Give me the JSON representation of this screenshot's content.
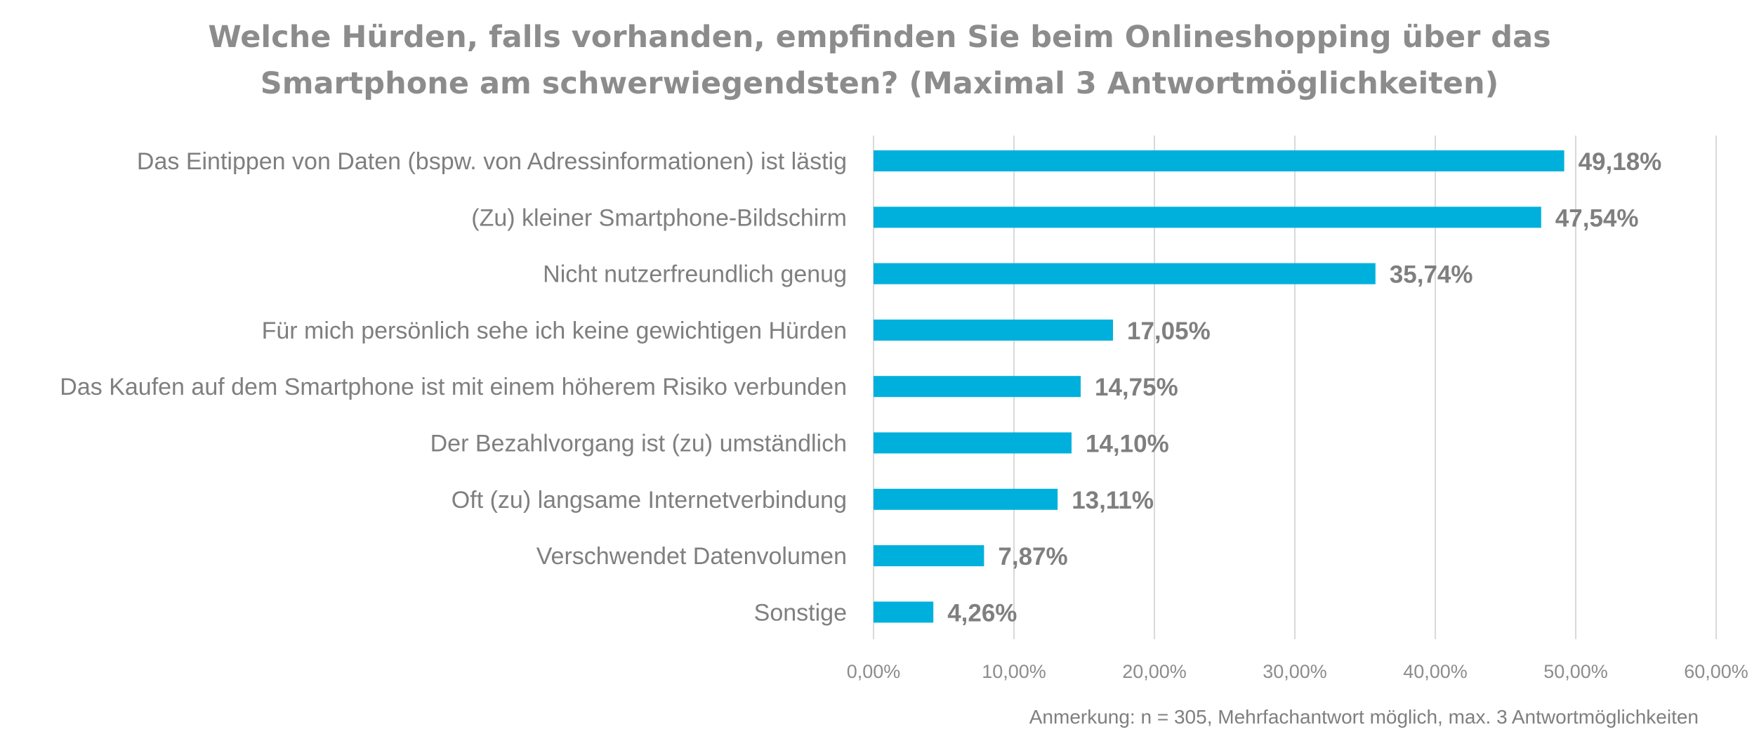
{
  "chart_data": {
    "type": "bar",
    "orientation": "horizontal",
    "title_lines": [
      "Welche Hürden, falls vorhanden, empfinden Sie beim Onlineshopping über das",
      "Smartphone am schwerwiegendsten? (Maximal 3 Antwortmöglichkeiten)"
    ],
    "categories": [
      "Das Eintippen von Daten (bspw. von Adressinformationen) ist lästig",
      "(Zu) kleiner Smartphone-Bildschirm",
      "Nicht nutzerfreundlich genug",
      "Für mich persönlich sehe ich keine gewichtigen Hürden",
      "Das Kaufen auf dem Smartphone ist mit einem höherem Risiko verbunden",
      "Der Bezahlvorgang ist (zu) umständlich",
      "Oft (zu) langsame Internetverbindung",
      "Verschwendet Datenvolumen",
      "Sonstige"
    ],
    "values": [
      49.18,
      47.54,
      35.74,
      17.05,
      14.75,
      14.1,
      13.11,
      7.87,
      4.26
    ],
    "value_labels": [
      "49,18%",
      "47,54%",
      "35,74%",
      "17,05%",
      "14,75%",
      "14,10%",
      "13,11%",
      "7,87%",
      "4,26%"
    ],
    "xlim": [
      0,
      60
    ],
    "x_ticks": [
      0,
      10,
      20,
      30,
      40,
      50,
      60
    ],
    "x_tick_labels": [
      "0,00%",
      "10,00%",
      "20,00%",
      "30,00%",
      "40,00%",
      "50,00%",
      "60,00%"
    ],
    "xlabel": "",
    "ylabel": "",
    "grid": true,
    "legend": "none",
    "bar_color": "#00b0dc",
    "note": "Anmerkung: n = 305, Mehrfachantwort möglich, max. 3 Antwortmöglichkeiten"
  }
}
